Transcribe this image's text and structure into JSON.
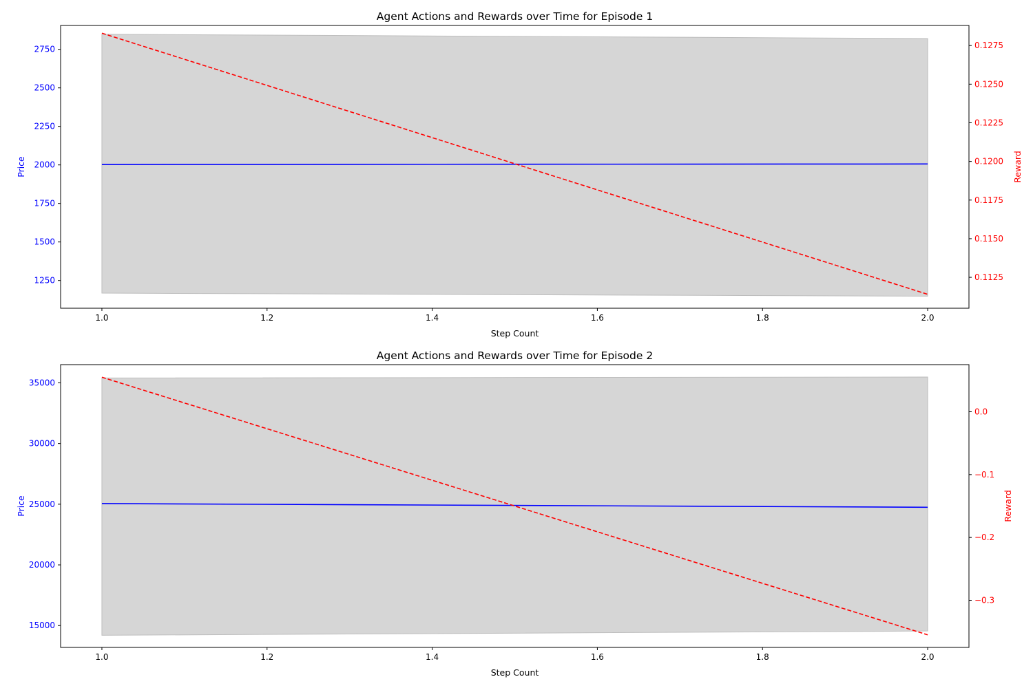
{
  "chart_data": [
    {
      "type": "line",
      "title": "Agent Actions and Rewards over Time for Episode 1",
      "xlabel": "Step Count",
      "ylabel_left": "Price",
      "ylabel_right": "Reward",
      "xlim": [
        0.95,
        2.05
      ],
      "ylim_left": [
        1070,
        2905
      ],
      "ylim_right": [
        0.1105,
        0.1288
      ],
      "x_ticks": [
        1.0,
        1.2,
        1.4,
        1.6,
        1.8,
        2.0
      ],
      "x_tick_labels": [
        "1.0",
        "1.2",
        "1.4",
        "1.6",
        "1.8",
        "2.0"
      ],
      "y_left_ticks": [
        1250,
        1500,
        1750,
        2000,
        2250,
        2500,
        2750
      ],
      "y_left_tick_labels": [
        "1250",
        "1500",
        "1750",
        "2000",
        "2250",
        "2500",
        "2750"
      ],
      "y_right_ticks": [
        0.1125,
        0.115,
        0.1175,
        0.12,
        0.1225,
        0.125,
        0.1275
      ],
      "y_right_tick_labels": [
        "0.1125",
        "0.1150",
        "0.1175",
        "0.1200",
        "0.1225",
        "0.1250",
        "0.1275"
      ],
      "x": [
        1.0,
        2.0
      ],
      "price": [
        2003,
        2006
      ],
      "band_upper": [
        2848,
        2820
      ],
      "band_lower": [
        1168,
        1148
      ],
      "reward": [
        0.1283,
        0.1114
      ],
      "colors": {
        "price": "#0000ff",
        "reward": "#ff0000",
        "band": "#d6d6d6",
        "band_edge": "#bdbdbd"
      }
    },
    {
      "type": "line",
      "title": "Agent Actions and Rewards over Time for Episode 2",
      "xlabel": "Step Count",
      "ylabel_left": "Price",
      "ylabel_right": "Reward",
      "xlim": [
        0.95,
        2.05
      ],
      "ylim_left": [
        13200,
        36500
      ],
      "ylim_right": [
        -0.375,
        0.075
      ],
      "x_ticks": [
        1.0,
        1.2,
        1.4,
        1.6,
        1.8,
        2.0
      ],
      "x_tick_labels": [
        "1.0",
        "1.2",
        "1.4",
        "1.6",
        "1.8",
        "2.0"
      ],
      "y_left_ticks": [
        15000,
        20000,
        25000,
        30000,
        35000
      ],
      "y_left_tick_labels": [
        "15000",
        "20000",
        "25000",
        "30000",
        "35000"
      ],
      "y_right_ticks": [
        -0.3,
        -0.2,
        -0.1,
        0.0
      ],
      "y_right_tick_labels": [
        "−0.3",
        "−0.2",
        "−0.1",
        "0.0"
      ],
      "x": [
        1.0,
        2.0
      ],
      "price": [
        25050,
        24750
      ],
      "band_upper": [
        35400,
        35480
      ],
      "band_lower": [
        14200,
        14550
      ],
      "reward": [
        0.055,
        -0.355
      ],
      "colors": {
        "price": "#0000ff",
        "reward": "#ff0000",
        "band": "#d6d6d6",
        "band_edge": "#bdbdbd"
      }
    }
  ]
}
